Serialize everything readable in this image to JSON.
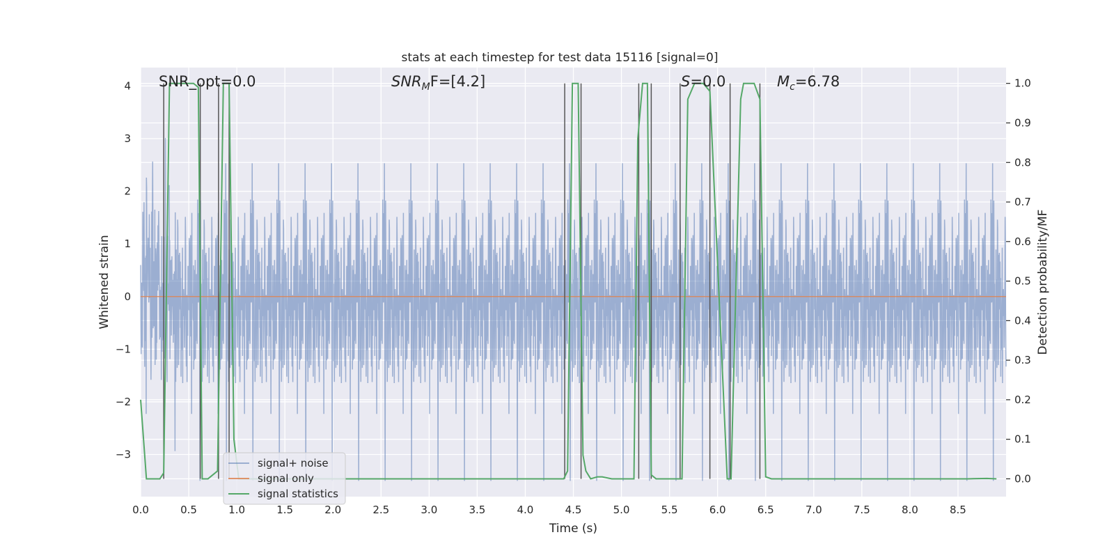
{
  "chart_data": {
    "type": "line",
    "title": "stats at each timestep for test data 15116 [signal=0]",
    "xlabel": "Time (s)",
    "ylabel": "Whitened strain",
    "y2label": "Detection probability/MF",
    "xlim": [
      0.0,
      9.0
    ],
    "ylim": [
      -3.8,
      4.35
    ],
    "y2lim": [
      -0.045,
      1.04
    ],
    "grid": true,
    "xticks": [
      0.0,
      0.5,
      1.0,
      1.5,
      2.0,
      2.5,
      3.0,
      3.5,
      4.0,
      4.5,
      5.0,
      5.5,
      6.0,
      6.5,
      7.0,
      7.5,
      8.0,
      8.5
    ],
    "xtick_labels": [
      "0.0",
      "0.5",
      "1.0",
      "1.5",
      "2.0",
      "2.5",
      "3.0",
      "3.5",
      "4.0",
      "4.5",
      "5.0",
      "5.5",
      "6.0",
      "6.5",
      "7.0",
      "7.5",
      "8.0",
      "8.5"
    ],
    "yticks": [
      -3,
      -2,
      -1,
      0,
      1,
      2,
      3,
      4
    ],
    "ytick_labels": [
      "−3",
      "−2",
      "−1",
      "0",
      "1",
      "2",
      "3",
      "4"
    ],
    "y2ticks": [
      0.0,
      0.1,
      0.2,
      0.3,
      0.4,
      0.5,
      0.6,
      0.7,
      0.8,
      0.9,
      1.0
    ],
    "y2tick_labels": [
      "0.0",
      "0.1",
      "0.2",
      "0.3",
      "0.4",
      "0.5",
      "0.6",
      "0.7",
      "0.8",
      "0.9",
      "1.0"
    ],
    "annotations": {
      "snr_opt": "SNR_opt=0.0",
      "snr_mf_main": "SNR",
      "snr_mf_sub": "M",
      "snr_mf_rest": "F=[4.2]",
      "s_main": "S",
      "s_rest": "=0.0",
      "mc_main": "M",
      "mc_sub": "c",
      "mc_rest": "=6.78"
    },
    "legend": {
      "placement": "lower-left",
      "entries": [
        "signal+ noise",
        "signal only",
        "signal statistics"
      ]
    },
    "series": [
      {
        "name": "signal+ noise",
        "color": "#4c72b0",
        "opacity": 0.5,
        "axis": "left",
        "dt": 0.0025,
        "duration": 9.0,
        "envelope_std": 0.95,
        "peak_max": 3.6,
        "peak_min": -3.5,
        "description": "whitened noise samples over 0–9 s"
      },
      {
        "name": "signal only",
        "color": "#dd8452",
        "axis": "left",
        "x": [
          0.0,
          9.0
        ],
        "values": [
          0.0,
          0.0
        ]
      },
      {
        "name": "signal statistics",
        "color": "#55a868",
        "axis": "right",
        "x": [
          0.0,
          0.06,
          0.2,
          0.24,
          0.3,
          0.55,
          0.6,
          0.64,
          0.7,
          0.8,
          0.86,
          0.92,
          0.97,
          1.02,
          1.05,
          4.4,
          4.44,
          4.49,
          4.55,
          4.6,
          4.63,
          4.68,
          4.75,
          4.8,
          4.9,
          5.13,
          5.17,
          5.22,
          5.27,
          5.31,
          5.36,
          5.5,
          5.63,
          5.69,
          5.76,
          5.85,
          5.92,
          6.1,
          6.14,
          6.24,
          6.27,
          6.38,
          6.44,
          6.5,
          6.56,
          8.6,
          8.8,
          8.9
        ],
        "values": [
          0.2,
          0.0,
          0.0,
          0.015,
          1.0,
          1.0,
          0.99,
          0.0,
          0.0,
          0.02,
          1.0,
          1.0,
          0.1,
          0.0,
          0.0,
          0.0,
          0.02,
          1.0,
          1.0,
          0.06,
          0.02,
          0.0,
          0.005,
          0.005,
          0.0,
          0.0,
          0.86,
          1.0,
          1.0,
          0.01,
          0.0,
          0.0,
          0.0,
          0.96,
          1.0,
          1.0,
          0.98,
          0.0,
          0.0,
          0.96,
          1.0,
          1.0,
          0.96,
          0.005,
          0.0,
          0.0,
          0.001,
          0.0
        ]
      }
    ],
    "vertical_markers": [
      0.24,
      0.62,
      0.81,
      0.92,
      4.41,
      4.58,
      5.18,
      5.31,
      5.61,
      5.92,
      6.13,
      6.44
    ]
  }
}
